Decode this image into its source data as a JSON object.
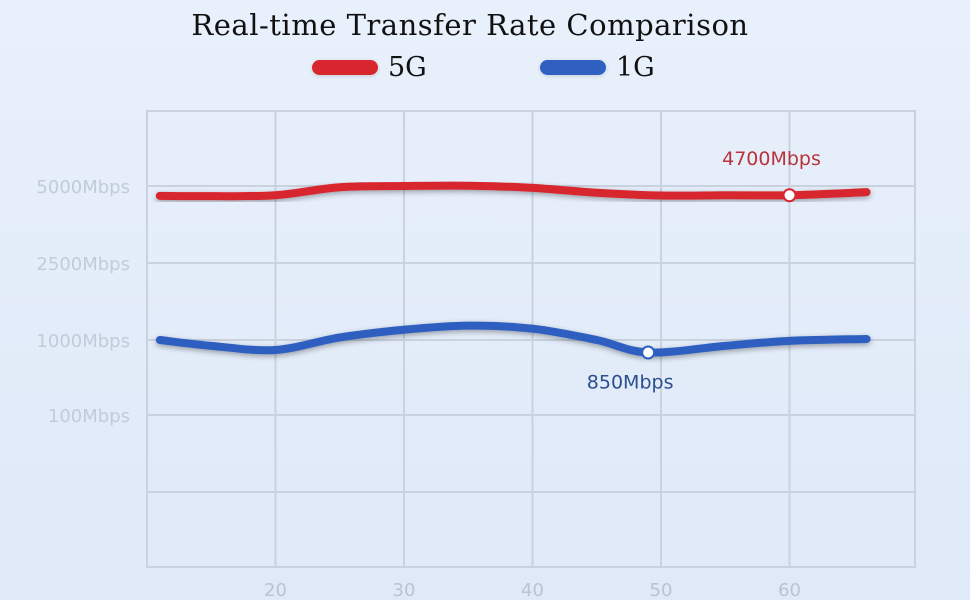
{
  "chart_data": {
    "type": "line",
    "title": "Real-time Transfer Rate Comparison",
    "xlabel": "",
    "ylabel": "",
    "x_ticks": [
      20,
      30,
      40,
      50,
      60
    ],
    "y_ticks": [
      "100Mbps",
      "1000Mbps",
      "2500Mbps",
      "5000Mbps"
    ],
    "grid": true,
    "legend_position": "top-center",
    "series": [
      {
        "name": "5G",
        "color": "#d8262e",
        "x": [
          11,
          15,
          20,
          25,
          30,
          35,
          40,
          45,
          50,
          55,
          60,
          66
        ],
        "y": [
          4680,
          4670,
          4700,
          4960,
          5000,
          5010,
          4940,
          4780,
          4690,
          4700,
          4700,
          4800
        ],
        "annotation": {
          "x": 60,
          "label": "4700Mbps"
        }
      },
      {
        "name": "1G",
        "color": "#2f5fc0",
        "x": [
          11,
          15,
          20,
          25,
          30,
          35,
          40,
          45,
          49,
          55,
          60,
          66
        ],
        "y": [
          1000,
          930,
          880,
          1050,
          1200,
          1280,
          1220,
          1000,
          850,
          930,
          990,
          1020
        ],
        "annotation": {
          "x": 49,
          "label": "850Mbps"
        }
      }
    ]
  }
}
